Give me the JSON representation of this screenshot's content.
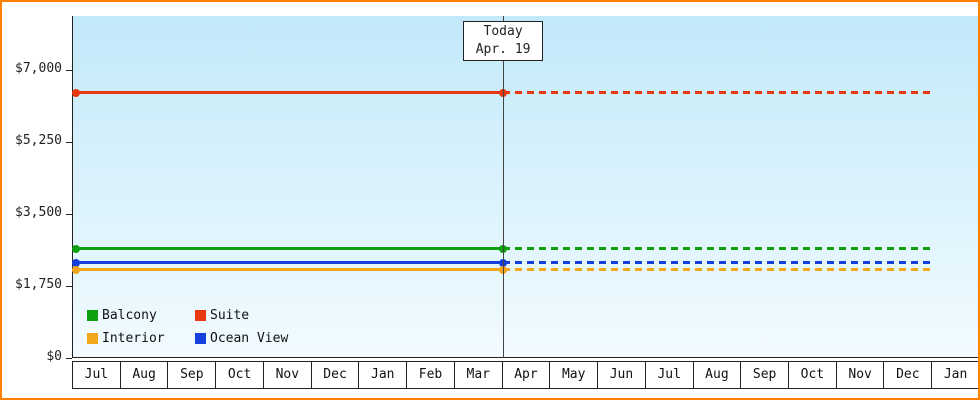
{
  "window": {
    "border_color": "#ff8000",
    "background": "#ffffff"
  },
  "chart_data": {
    "type": "line",
    "title": "",
    "xlabel": "",
    "ylabel": "",
    "grid": false,
    "plot_background": {
      "top": "#c2e9f9",
      "bottom": "#f2fbff"
    },
    "x_categories": [
      "Jul",
      "Aug",
      "Sep",
      "Oct",
      "Nov",
      "Dec",
      "Jan",
      "Feb",
      "Mar",
      "Apr",
      "May",
      "Jun",
      "Jul",
      "Aug",
      "Sep",
      "Oct",
      "Nov",
      "Dec",
      "Jan"
    ],
    "y_ticks": [
      {
        "label": "$0",
        "value": 0
      },
      {
        "label": "$1,750",
        "value": 1750
      },
      {
        "label": "$3,500",
        "value": 3500
      },
      {
        "label": "$5,250",
        "value": 5250
      },
      {
        "label": "$7,000",
        "value": 7000
      }
    ],
    "ylim": [
      0,
      8300
    ],
    "series": [
      {
        "name": "Suite",
        "color": "#e8380f",
        "value": 6450,
        "solid_until": "Apr",
        "dashed_after": true
      },
      {
        "name": "Balcony",
        "color": "#0fa00f",
        "value": 2650,
        "solid_until": "Apr",
        "dashed_after": true
      },
      {
        "name": "Ocean View",
        "color": "#1640dd",
        "value": 2320,
        "solid_until": "Apr",
        "dashed_after": true
      },
      {
        "name": "Interior",
        "color": "#f2a71b",
        "value": 2150,
        "solid_until": "Apr",
        "dashed_after": true
      }
    ],
    "legend": {
      "position": "bottom-left",
      "items": [
        {
          "name": "Balcony",
          "color": "#0fa00f"
        },
        {
          "name": "Suite",
          "color": "#e8380f"
        },
        {
          "name": "Interior",
          "color": "#f2a71b"
        },
        {
          "name": "Ocean View",
          "color": "#1640dd"
        }
      ]
    },
    "annotation": {
      "line1": "Today",
      "line2": "Apr. 19",
      "month_index": 9
    }
  }
}
